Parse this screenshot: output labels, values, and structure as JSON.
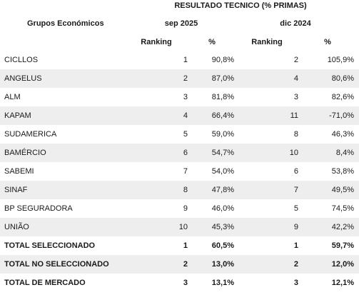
{
  "header": {
    "title": "RESULTADO TECNICO (% PRIMAS)",
    "groups_label": "Grupos Económicos",
    "period1": "sep 2025",
    "period2": "dic 2024",
    "ranking_label": "Ranking",
    "pct_label": "%"
  },
  "rows": [
    {
      "name": "CICLLOS",
      "rank1": "1",
      "pct1": "90,8%",
      "rank2": "2",
      "pct2": "105,9%",
      "shaded": false,
      "bold": false
    },
    {
      "name": "ANGELUS",
      "rank1": "2",
      "pct1": "87,0%",
      "rank2": "4",
      "pct2": "80,6%",
      "shaded": true,
      "bold": false
    },
    {
      "name": "ALM",
      "rank1": "3",
      "pct1": "81,8%",
      "rank2": "3",
      "pct2": "82,6%",
      "shaded": false,
      "bold": false
    },
    {
      "name": "KAPAM",
      "rank1": "4",
      "pct1": "66,4%",
      "rank2": "11",
      "pct2": "-71,0%",
      "shaded": true,
      "bold": false
    },
    {
      "name": "SUDAMERICA",
      "rank1": "5",
      "pct1": "59,0%",
      "rank2": "8",
      "pct2": "46,3%",
      "shaded": false,
      "bold": false
    },
    {
      "name": "BAMÉRCIO",
      "rank1": "6",
      "pct1": "54,7%",
      "rank2": "10",
      "pct2": "8,4%",
      "shaded": true,
      "bold": false
    },
    {
      "name": "SABEMI",
      "rank1": "7",
      "pct1": "54,0%",
      "rank2": "6",
      "pct2": "53,8%",
      "shaded": false,
      "bold": false
    },
    {
      "name": "SINAF",
      "rank1": "8",
      "pct1": "47,8%",
      "rank2": "7",
      "pct2": "49,5%",
      "shaded": true,
      "bold": false
    },
    {
      "name": "BP SEGURADORA",
      "rank1": "9",
      "pct1": "46,0%",
      "rank2": "5",
      "pct2": "74,5%",
      "shaded": false,
      "bold": false
    },
    {
      "name": "UNIÃO",
      "rank1": "10",
      "pct1": "45,3%",
      "rank2": "9",
      "pct2": "42,2%",
      "shaded": true,
      "bold": false
    },
    {
      "name": "TOTAL SELECCIONADO",
      "rank1": "1",
      "pct1": "60,5%",
      "rank2": "1",
      "pct2": "59,7%",
      "shaded": false,
      "bold": true
    },
    {
      "name": "TOTAL NO SELECCIONADO",
      "rank1": "2",
      "pct1": "13,0%",
      "rank2": "2",
      "pct2": "12,0%",
      "shaded": true,
      "bold": true
    },
    {
      "name": "TOTAL DE MERCADO",
      "rank1": "3",
      "pct1": "13,1%",
      "rank2": "3",
      "pct2": "12,1%",
      "shaded": false,
      "bold": true
    }
  ]
}
